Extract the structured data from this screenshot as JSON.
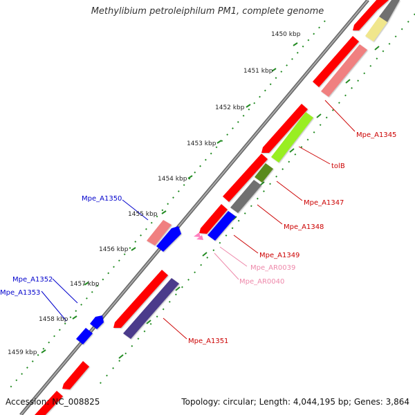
{
  "title": "Methylibium petroleiphilum PM1, complete genome",
  "accession_text": "Accession: NC_008825",
  "topology_text": "Topology: circular; Length: 4,044,195 bp; Genes: 3,864",
  "kbp_ticks": [
    "1450 kbp",
    "1451 kbp",
    "1452 kbp",
    "1453 kbp",
    "1454 kbp",
    "1455 kbp",
    "1456 kbp",
    "1457 kbp",
    "1458 kbp",
    "1459 kbp"
  ],
  "gene_labels": [
    {
      "text": "Mpe_A1345",
      "color": "#cc0000"
    },
    {
      "text": "tolB",
      "color": "#cc0000"
    },
    {
      "text": "Mpe_A1347",
      "color": "#cc0000"
    },
    {
      "text": "Mpe_A1348",
      "color": "#cc0000"
    },
    {
      "text": "Mpe_A1349",
      "color": "#cc0000"
    },
    {
      "text": "Mpe_AR0039",
      "color": "#ee88aa"
    },
    {
      "text": "Mpe_AR0040",
      "color": "#ee88aa"
    },
    {
      "text": "Mpe_A1351",
      "color": "#cc0000"
    },
    {
      "text": "Mpe_A1350",
      "color": "#0000cc"
    },
    {
      "text": "Mpe_A1352",
      "color": "#0000cc"
    },
    {
      "text": "Mpe_A1353",
      "color": "#0000cc"
    }
  ],
  "colors": {
    "cds": "#ff0000",
    "cds_light": "#f08080",
    "reverse_cds": "#0000ff",
    "rna": "#ff80c0",
    "cog_gray": "#707070",
    "cog_yellow": "#f0e68c",
    "cog_green": "#99ee22",
    "cog_olive": "#5a8a1e",
    "cog_indigo": "#4b3b8b",
    "backbone": "#888888",
    "tick_green": "#228b22"
  }
}
